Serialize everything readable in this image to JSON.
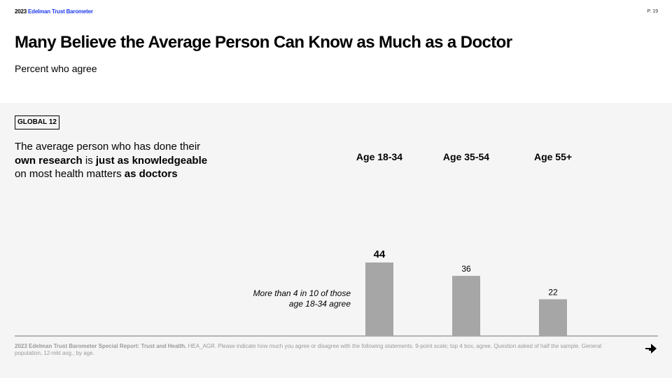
{
  "header": {
    "brand_year": "2023",
    "brand_name": "Edelman Trust Barometer",
    "page": "P. 19"
  },
  "title": "Many Believe the Average Person Can Know as Much as a Doctor",
  "subtitle": "Percent who agree",
  "badge": "GLOBAL 12",
  "statement": {
    "p1": "The average person who has done their",
    "p2": "own research",
    "p3": " is ",
    "p4": "just as knowledgeable",
    "p5": "on most health matters ",
    "p6": "as doctors"
  },
  "note": "More than 4 in 10 of those age 18-34 agree",
  "footer": {
    "source": "2023 Edelman Trust Barometer Special Report: Trust and Health.",
    "text": " HEA_AGR. Please indicate how much you agree or disagree with the following statements. 9-point scale; top 4 box, agree. Question asked of half the sample. General population, 12-mkt avg., by age."
  },
  "colors": {
    "bar": "#a6a6a6",
    "panel": "#f5f5f5",
    "brand": "#1f3cf0",
    "axis": "#9e9e9e"
  },
  "chart_data": {
    "type": "bar",
    "categories": [
      "Age 18-34",
      "Age 35-54",
      "Age 55+"
    ],
    "values": [
      44,
      36,
      22
    ],
    "title": "",
    "xlabel": "",
    "ylabel": "",
    "ylim": [
      0,
      100
    ],
    "highlight_index": 0
  }
}
